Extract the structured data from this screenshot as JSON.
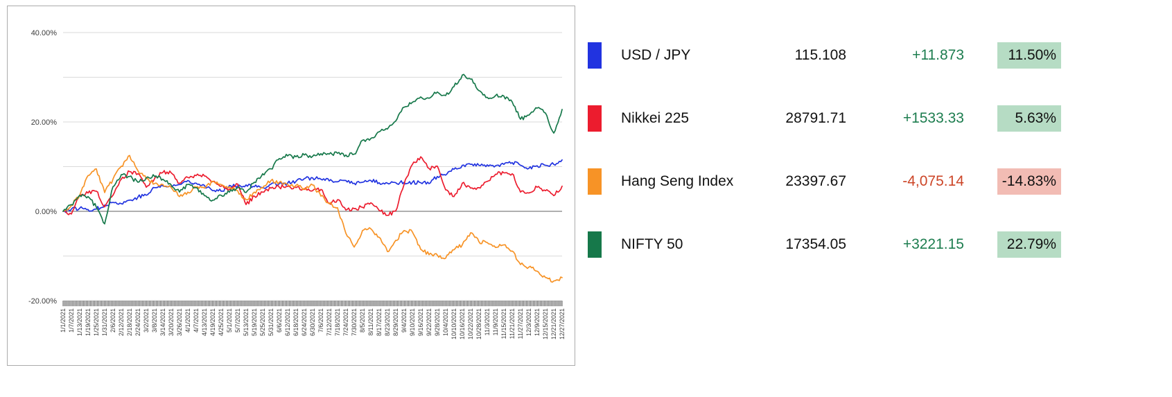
{
  "chart_data": {
    "type": "line",
    "title": "",
    "xlabel": "",
    "ylabel": "",
    "ylim": [
      -20,
      40
    ],
    "grid": true,
    "grid_step": 10,
    "legend_position": "right-table",
    "y_ticks": [
      {
        "value": 40,
        "label": "40.00%"
      },
      {
        "value": 20,
        "label": "20.00%"
      },
      {
        "value": 0,
        "label": "0.00%"
      },
      {
        "value": -20,
        "label": "-20.00%"
      }
    ],
    "x": [
      "1/1/2021",
      "1/7/2021",
      "1/13/2021",
      "1/19/2021",
      "1/25/2021",
      "1/31/2021",
      "2/6/2021",
      "2/12/2021",
      "2/18/2021",
      "2/24/2021",
      "3/2/2021",
      "3/8/2021",
      "3/14/2021",
      "3/20/2021",
      "3/26/2021",
      "4/1/2021",
      "4/7/2021",
      "4/13/2021",
      "4/19/2021",
      "4/25/2021",
      "5/1/2021",
      "5/7/2021",
      "5/13/2021",
      "5/19/2021",
      "5/25/2021",
      "5/31/2021",
      "6/6/2021",
      "6/12/2021",
      "6/18/2021",
      "6/24/2021",
      "6/30/2021",
      "7/6/2021",
      "7/12/2021",
      "7/18/2021",
      "7/24/2021",
      "7/30/2021",
      "8/5/2021",
      "8/11/2021",
      "8/17/2021",
      "8/23/2021",
      "8/29/2021",
      "9/4/2021",
      "9/10/2021",
      "9/16/2021",
      "9/22/2021",
      "9/28/2021",
      "10/4/2021",
      "10/10/2021",
      "10/16/2021",
      "10/22/2021",
      "10/28/2021",
      "11/3/2021",
      "11/9/2021",
      "11/15/2021",
      "11/21/2021",
      "11/27/2021",
      "12/3/2021",
      "12/9/2021",
      "12/15/2021",
      "12/21/2021",
      "12/27/2021"
    ],
    "series": [
      {
        "name": "USD / JPY",
        "color": "#2133e0",
        "values": [
          0,
          0.5,
          0.7,
          0.4,
          0.5,
          1.4,
          2.0,
          1.7,
          2.5,
          3.2,
          3.6,
          5.3,
          5.7,
          5.5,
          6.0,
          6.9,
          6.3,
          5.8,
          4.6,
          4.5,
          5.8,
          5.7,
          5.9,
          5.5,
          5.3,
          6.1,
          6.2,
          6.3,
          6.7,
          7.3,
          7.5,
          7.2,
          6.8,
          6.6,
          6.9,
          6.3,
          6.5,
          6.9,
          6.4,
          6.3,
          6.4,
          6.5,
          6.5,
          6.4,
          6.2,
          7.8,
          8.1,
          9.4,
          10.3,
          10.5,
          10.3,
          10.4,
          10.2,
          10.5,
          10.9,
          10.3,
          9.6,
          10.2,
          10.3,
          10.5,
          11.5
        ]
      },
      {
        "name": "Nikkei 225",
        "color": "#ec1c2e",
        "values": [
          0,
          -0.6,
          3.5,
          4.1,
          4.5,
          1.0,
          3.6,
          7.2,
          8.9,
          8.4,
          5.4,
          7.3,
          8.7,
          8.6,
          6.3,
          7.6,
          8.0,
          7.9,
          6.7,
          5.6,
          4.9,
          6.1,
          1.5,
          3.4,
          4.3,
          5.2,
          5.4,
          5.6,
          5.3,
          4.9,
          4.6,
          4.9,
          1.8,
          2.6,
          0.3,
          0.6,
          0.9,
          1.9,
          0.2,
          -0.9,
          0.1,
          6.0,
          10.5,
          12.2,
          9.6,
          10.1,
          4.8,
          3.3,
          6.3,
          5.2,
          5.3,
          6.7,
          8.3,
          8.6,
          8.4,
          4.3,
          4.1,
          5.4,
          4.6,
          3.5,
          5.63
        ]
      },
      {
        "name": "Hang Seng Index",
        "color": "#f79326",
        "values": [
          0,
          1.3,
          3.6,
          8.0,
          9.5,
          4.2,
          7.2,
          10.1,
          12.5,
          9.1,
          7.3,
          6.2,
          6.0,
          5.3,
          3.3,
          4.3,
          5.4,
          5.2,
          6.7,
          6.0,
          5.5,
          4.6,
          2.6,
          4.3,
          5.2,
          6.9,
          6.5,
          6.0,
          5.8,
          5.1,
          5.9,
          3.4,
          1.7,
          0.8,
          -4.9,
          -8.0,
          -4.3,
          -3.9,
          -5.8,
          -9.0,
          -6.5,
          -4.3,
          -4.6,
          -8.5,
          -9.7,
          -9.8,
          -10.5,
          -8.6,
          -7.5,
          -4.8,
          -6.8,
          -7.0,
          -8.1,
          -7.5,
          -8.9,
          -11.9,
          -12.5,
          -13.4,
          -14.8,
          -15.6,
          -14.83
        ]
      },
      {
        "name": "NIFTY 50",
        "color": "#16784a",
        "values": [
          0,
          1.5,
          3.6,
          3.3,
          0.9,
          -2.8,
          5.5,
          8.2,
          7.8,
          6.5,
          7.5,
          7.8,
          7.2,
          5.9,
          4.3,
          6.0,
          5.3,
          3.5,
          2.5,
          3.6,
          4.3,
          5.3,
          4.2,
          6.5,
          8.4,
          9.5,
          11.8,
          12.4,
          12.2,
          12.6,
          12.3,
          12.9,
          12.8,
          13.0,
          12.6,
          12.8,
          15.9,
          16.3,
          17.8,
          18.4,
          20.2,
          23.3,
          24.4,
          25.6,
          25.3,
          26.7,
          25.9,
          27.9,
          30.5,
          29.6,
          27.0,
          25.5,
          25.9,
          25.8,
          24.5,
          20.6,
          21.5,
          23.1,
          22.0,
          17.5,
          22.79
        ]
      }
    ]
  },
  "legend": {
    "rows": [
      {
        "name": "USD / JPY",
        "color": "#2133e0",
        "value": "115.108",
        "change": "+11.873",
        "pct": "11.50%",
        "positive": true
      },
      {
        "name": "Nikkei 225",
        "color": "#ec1c2e",
        "value": "28791.71",
        "change": "+1533.33",
        "pct": "5.63%",
        "positive": true
      },
      {
        "name": "Hang Seng Index",
        "color": "#f79326",
        "value": "23397.67",
        "change": "-4,075.14",
        "pct": "-14.83%",
        "positive": false
      },
      {
        "name": "NIFTY 50",
        "color": "#16784a",
        "value": "17354.05",
        "change": "+3221.15",
        "pct": "22.79%",
        "positive": true
      }
    ]
  },
  "colors": {
    "positive_text": "#1d7d4f",
    "negative_text": "#cc4527",
    "positive_badge_bg": "#b6dcc4",
    "negative_badge_bg": "#f2bcb4",
    "grid": "#dadada",
    "zero_line": "#7f7f7f",
    "axis_text": "#3a3a3a",
    "tick": "#2e2e2e",
    "panel_border": "#ababab"
  }
}
